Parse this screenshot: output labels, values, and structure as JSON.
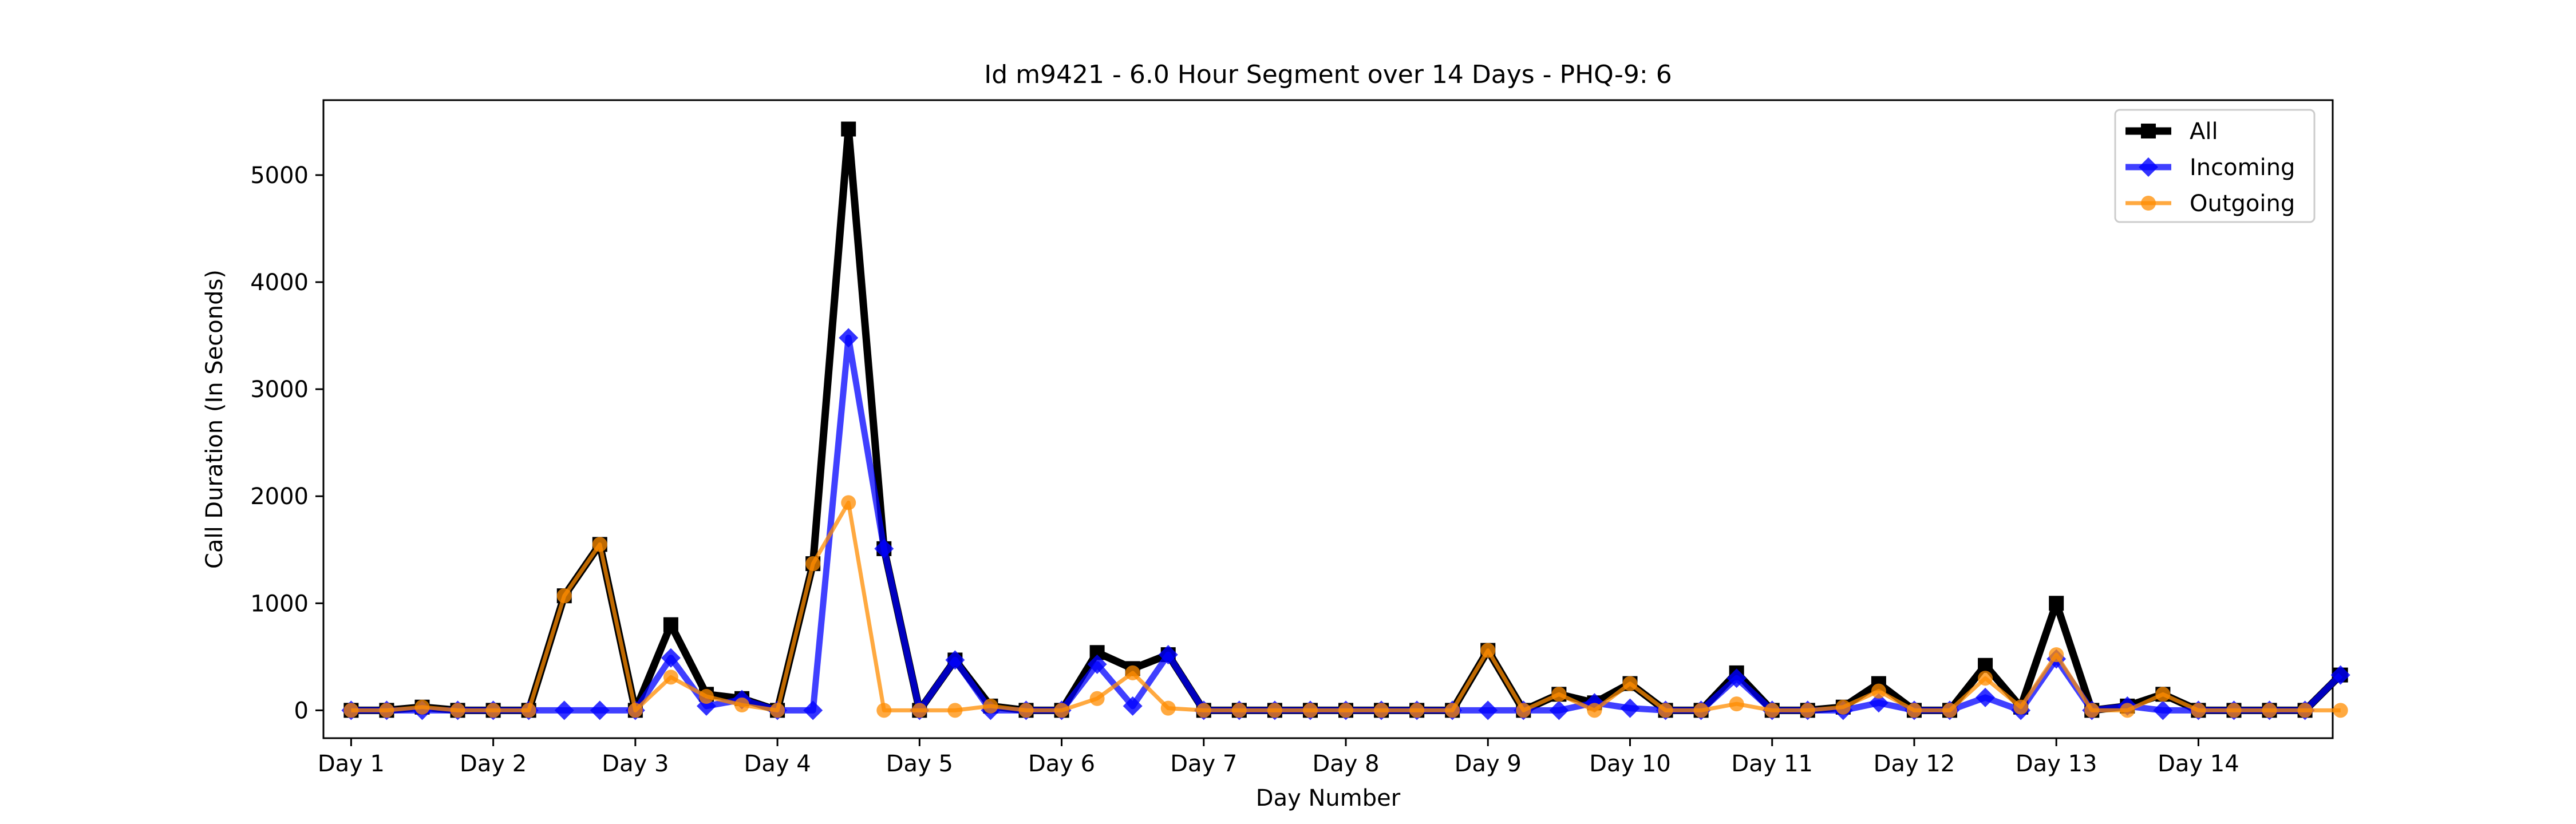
{
  "chart_data": {
    "type": "line",
    "title": "Id m9421 - 6.0 Hour Segment over 14 Days - PHQ-9: 6",
    "xlabel": "Day Number",
    "ylabel": "Call Duration (In Seconds)",
    "xlim": [
      -0.78,
      55.78
    ],
    "ylim": [
      -260,
      5700
    ],
    "grid": false,
    "legend_position": "top-right",
    "x_ticks": [
      {
        "x": 0,
        "label": "Day 1"
      },
      {
        "x": 4,
        "label": "Day 2"
      },
      {
        "x": 8,
        "label": "Day 3"
      },
      {
        "x": 12,
        "label": "Day 4"
      },
      {
        "x": 16,
        "label": "Day 5"
      },
      {
        "x": 20,
        "label": "Day 6"
      },
      {
        "x": 24,
        "label": "Day 7"
      },
      {
        "x": 28,
        "label": "Day 8"
      },
      {
        "x": 32,
        "label": "Day 9"
      },
      {
        "x": 36,
        "label": "Day 10"
      },
      {
        "x": 40,
        "label": "Day 11"
      },
      {
        "x": 44,
        "label": "Day 12"
      },
      {
        "x": 48,
        "label": "Day 13"
      },
      {
        "x": 52,
        "label": "Day 14"
      }
    ],
    "y_ticks": [
      {
        "y": 0,
        "label": "0"
      },
      {
        "y": 1000,
        "label": "1000"
      },
      {
        "y": 2000,
        "label": "2000"
      },
      {
        "y": 3000,
        "label": "3000"
      },
      {
        "y": 4000,
        "label": "4000"
      },
      {
        "y": 5000,
        "label": "5000"
      }
    ],
    "series": [
      {
        "name": "All",
        "color": "#000000",
        "marker": "square",
        "values": [
          0,
          0,
          30,
          0,
          0,
          0,
          1070,
          1550,
          0,
          800,
          150,
          110,
          0,
          1370,
          5430,
          1510,
          0,
          470,
          40,
          0,
          0,
          540,
          390,
          520,
          0,
          0,
          0,
          0,
          0,
          0,
          0,
          0,
          560,
          0,
          150,
          70,
          250,
          0,
          0,
          350,
          0,
          0,
          30,
          250,
          0,
          0,
          420,
          30,
          1000,
          0,
          40,
          150,
          0,
          0,
          0,
          0,
          330
        ]
      },
      {
        "name": "Incoming",
        "color": "#0000ff",
        "marker": "diamond",
        "values": [
          0,
          0,
          0,
          0,
          0,
          0,
          0,
          0,
          0,
          490,
          40,
          100,
          0,
          0,
          3480,
          1510,
          0,
          470,
          0,
          0,
          0,
          430,
          40,
          520,
          0,
          0,
          0,
          0,
          0,
          0,
          0,
          0,
          0,
          0,
          0,
          70,
          20,
          0,
          0,
          300,
          0,
          0,
          0,
          70,
          0,
          0,
          120,
          0,
          480,
          0,
          40,
          0,
          0,
          0,
          0,
          0,
          330
        ]
      },
      {
        "name": "Outgoing",
        "color": "#ff8c00",
        "marker": "circle",
        "values": [
          0,
          0,
          30,
          0,
          0,
          0,
          1070,
          1550,
          0,
          310,
          130,
          50,
          0,
          1370,
          1940,
          0,
          0,
          0,
          40,
          0,
          0,
          110,
          350,
          20,
          0,
          0,
          0,
          0,
          0,
          0,
          0,
          0,
          560,
          0,
          150,
          0,
          250,
          0,
          0,
          60,
          0,
          0,
          30,
          180,
          0,
          0,
          300,
          30,
          520,
          0,
          0,
          150,
          0,
          0,
          0,
          0,
          0
        ]
      }
    ]
  }
}
